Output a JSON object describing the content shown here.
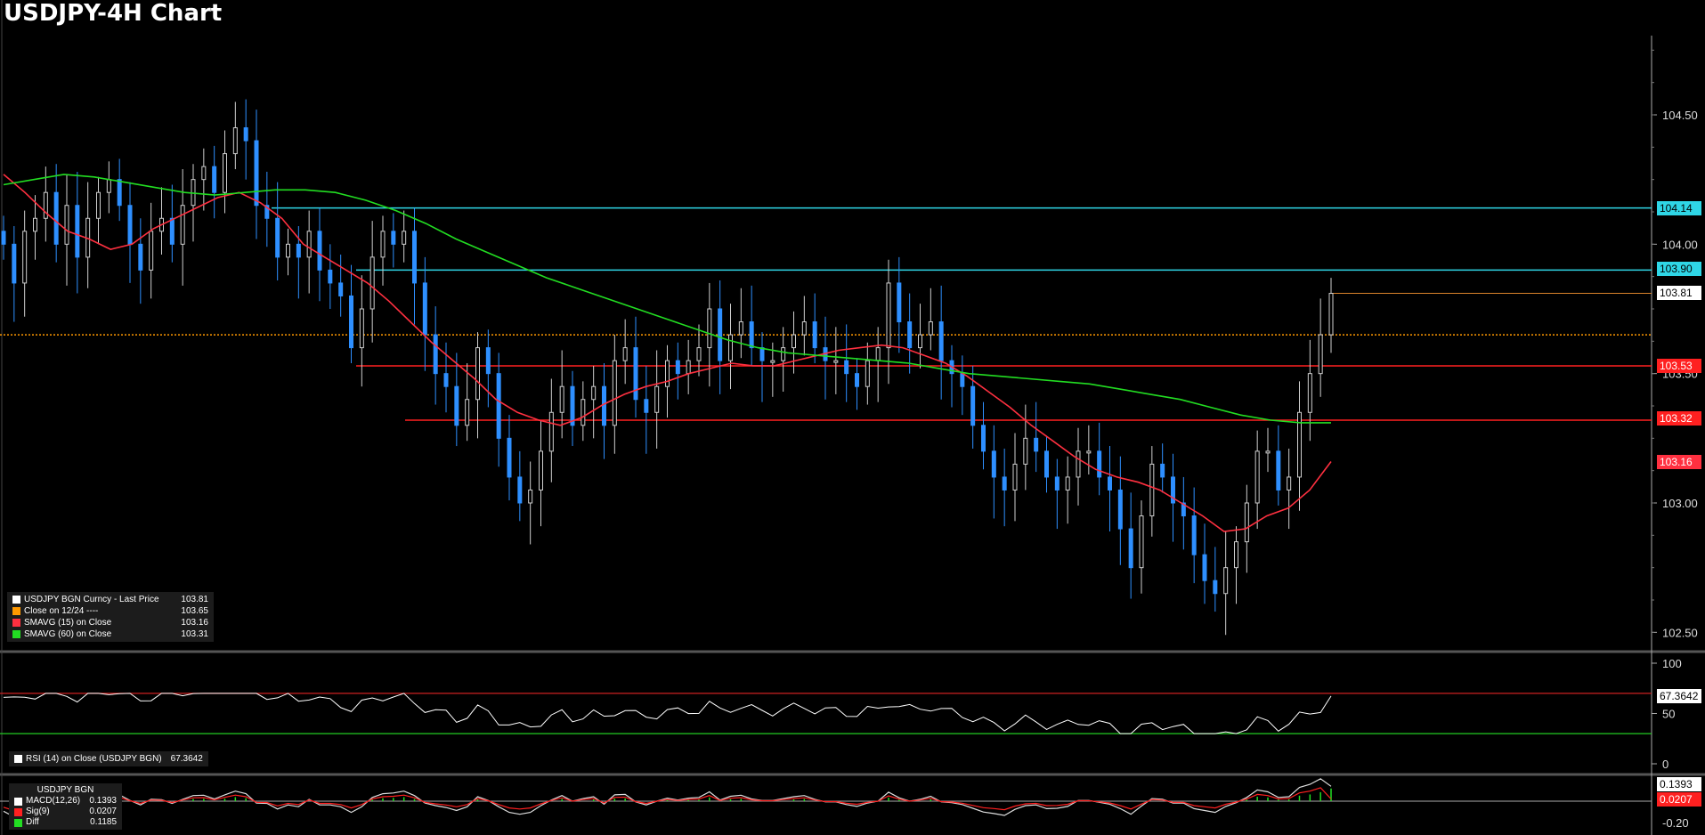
{
  "title": "USDJPY-4H Chart",
  "colors": {
    "bg": "#000000",
    "up": "#cfcfcf",
    "down": "#2e8fff",
    "sma15": "#ff3040",
    "sma60": "#22dd22",
    "cyan": "#2fd6e6",
    "red_level": "#ff2020",
    "close_line": "#ff9900"
  },
  "main_legend": [
    {
      "label": "USDJPY BGN Curncy - Last Price",
      "value": "103.81",
      "color": "#ffffff"
    },
    {
      "label": "Close on 12/24 ----",
      "value": "103.65",
      "color": "#ff9900"
    },
    {
      "label": "SMAVG (15)  on Close",
      "value": "103.16",
      "color": "#ff3040"
    },
    {
      "label": "SMAVG (60)  on Close",
      "value": "103.31",
      "color": "#22dd22"
    }
  ],
  "rsi_legend": {
    "label": "RSI (14)  on Close (USDJPY BGN)",
    "value": "67.3642"
  },
  "macd_legend": {
    "title": "USDJPY BGN",
    "items": [
      {
        "label": "MACD(12,26)",
        "value": "0.1393",
        "color": "#ffffff"
      },
      {
        "label": "Sig(9)",
        "value": "0.0207",
        "color": "#ff2020"
      },
      {
        "label": "Diff",
        "value": "0.1185",
        "color": "#22dd22"
      }
    ]
  },
  "tags": {
    "t104_14": "104.14",
    "t103_90": "103.90",
    "t103_81": "103.81",
    "t103_53": "103.53",
    "t103_32": "103.32",
    "t103_16": "103.16",
    "rsi_val": "67.3642",
    "macd_val": "0.1393",
    "sig_val": "0.0207"
  },
  "chart_data": [
    {
      "type": "candlestick",
      "title": "USDJPY-4H Chart",
      "y_ticks": [
        "104.50",
        "104.00",
        "103.50",
        "103.00",
        "102.50"
      ],
      "ylim": [
        102.4,
        104.75
      ],
      "horizontal_levels": [
        {
          "value": 104.14,
          "color": "cyan"
        },
        {
          "value": 103.9,
          "color": "cyan"
        },
        {
          "value": 103.53,
          "color": "red"
        },
        {
          "value": 103.32,
          "color": "red"
        },
        {
          "value": 103.65,
          "color": "orange",
          "style": "dotted"
        }
      ],
      "close_path": [
        104.0,
        103.85,
        104.05,
        104.1,
        104.2,
        104.0,
        104.15,
        103.95,
        104.1,
        104.2,
        104.25,
        104.15,
        104.0,
        103.9,
        104.05,
        104.1,
        104.0,
        104.15,
        104.25,
        104.3,
        104.2,
        104.35,
        104.45,
        104.4,
        104.15,
        104.1,
        103.95,
        104.0,
        103.95,
        104.05,
        103.9,
        103.85,
        103.8,
        103.6,
        103.75,
        103.95,
        104.05,
        104.0,
        104.05,
        103.85,
        103.65,
        103.5,
        103.45,
        103.3,
        103.4,
        103.6,
        103.5,
        103.25,
        103.1,
        103.0,
        103.05,
        103.2,
        103.35,
        103.45,
        103.3,
        103.4,
        103.45,
        103.3,
        103.55,
        103.6,
        103.4,
        103.35,
        103.45,
        103.55,
        103.5,
        103.55,
        103.6,
        103.75,
        103.55,
        103.65,
        103.7,
        103.6,
        103.55,
        103.55,
        103.6,
        103.65,
        103.7,
        103.6,
        103.55,
        103.55,
        103.5,
        103.45,
        103.55,
        103.6,
        103.85,
        103.7,
        103.6,
        103.65,
        103.7,
        103.55,
        103.5,
        103.45,
        103.3,
        103.2,
        103.1,
        103.05,
        103.15,
        103.25,
        103.2,
        103.1,
        103.05,
        103.1,
        103.2,
        103.2,
        103.1,
        103.05,
        102.9,
        102.75,
        102.95,
        103.15,
        103.1,
        103.0,
        102.95,
        102.8,
        102.7,
        102.65,
        102.75,
        102.85,
        103.0,
        103.2,
        103.2,
        103.05,
        103.1,
        103.35,
        103.5,
        103.65,
        103.81
      ],
      "sma15_path": [
        104.27,
        104.2,
        104.12,
        104.05,
        104.02,
        103.98,
        104.0,
        104.06,
        104.1,
        104.14,
        104.18,
        104.2,
        104.16,
        104.1,
        104.0,
        103.95,
        103.9,
        103.85,
        103.78,
        103.7,
        103.62,
        103.55,
        103.48,
        103.4,
        103.35,
        103.32,
        103.3,
        103.33,
        103.38,
        103.42,
        103.45,
        103.47,
        103.5,
        103.52,
        103.54,
        103.53,
        103.53,
        103.55,
        103.57,
        103.59,
        103.6,
        103.61,
        103.6,
        103.57,
        103.54,
        103.49,
        103.43,
        103.37,
        103.3,
        103.24,
        103.18,
        103.13,
        103.1,
        103.08,
        103.05,
        103.0,
        102.95,
        102.89,
        102.9,
        102.95,
        102.98,
        103.05,
        103.16
      ],
      "sma60_path": [
        104.23,
        104.25,
        104.27,
        104.26,
        104.24,
        104.22,
        104.2,
        104.19,
        104.2,
        104.21,
        104.21,
        104.2,
        104.17,
        104.13,
        104.08,
        104.02,
        103.97,
        103.92,
        103.87,
        103.83,
        103.79,
        103.75,
        103.71,
        103.67,
        103.63,
        103.6,
        103.58,
        103.57,
        103.56,
        103.55,
        103.54,
        103.52,
        103.5,
        103.49,
        103.48,
        103.47,
        103.46,
        103.44,
        103.42,
        103.4,
        103.37,
        103.34,
        103.32,
        103.31,
        103.31
      ],
      "x_range": "candles rendered from left edge to x=1225 px region"
    },
    {
      "type": "line",
      "name": "RSI (14)",
      "y_ticks": [
        "100",
        "50",
        "0"
      ],
      "ylim": [
        0,
        100
      ],
      "levels": [
        70,
        30
      ],
      "last": 67.3642
    },
    {
      "type": "area",
      "name": "MACD",
      "y_ticks": [
        "-0.20"
      ],
      "macd_last": 0.1393,
      "sig_last": 0.0207,
      "diff_last": 0.1185
    }
  ]
}
